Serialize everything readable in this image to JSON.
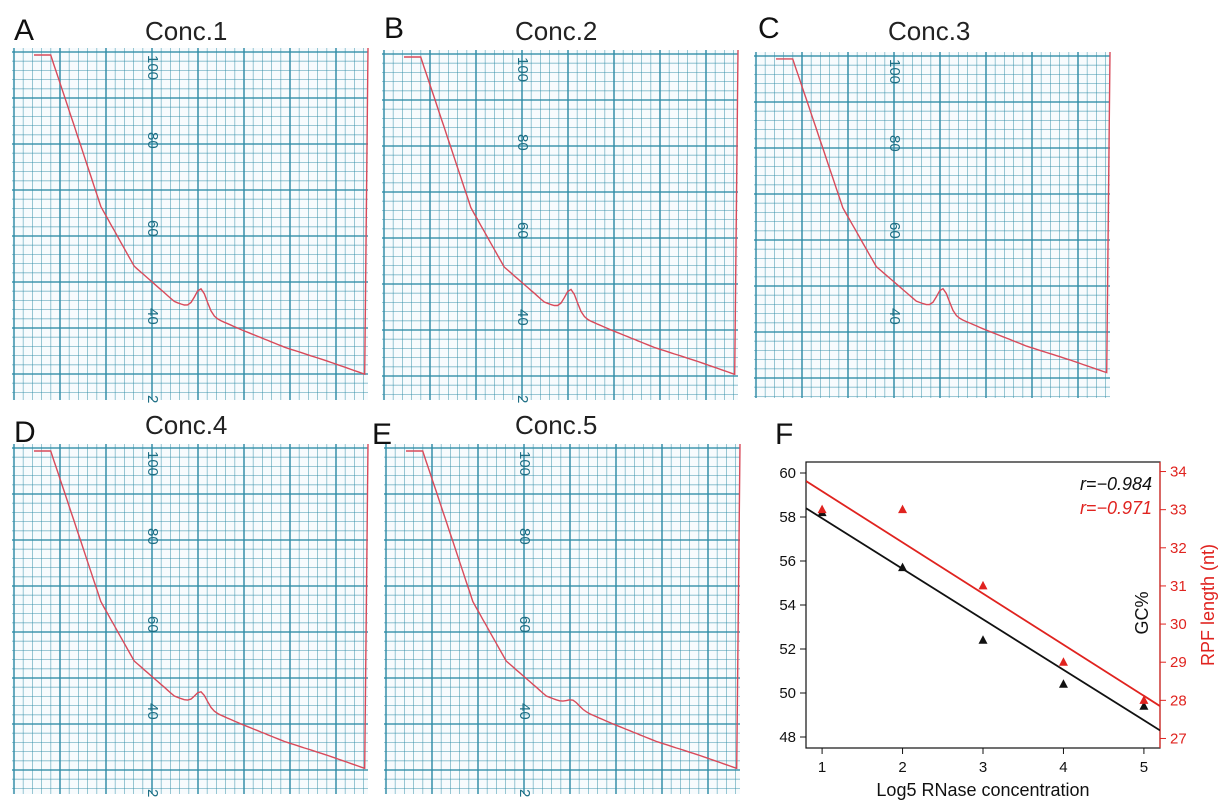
{
  "panels": [
    {
      "letter": "A",
      "title": "Conc.1",
      "tick_labels": [
        "100",
        "80",
        "60",
        "40",
        "2"
      ],
      "peak_height": 0.55
    },
    {
      "letter": "B",
      "title": "Conc.2",
      "tick_labels": [
        "100",
        "80",
        "60",
        "40",
        "2"
      ],
      "peak_height": 0.55
    },
    {
      "letter": "C",
      "title": "Conc.3",
      "tick_labels": [
        "100",
        "80",
        "60",
        "40"
      ],
      "peak_height": 0.55
    },
    {
      "letter": "D",
      "title": "Conc.4",
      "tick_labels": [
        "100",
        "80",
        "60",
        "40",
        "2"
      ],
      "peak_height": 0.35
    },
    {
      "letter": "E",
      "title": "Conc.5",
      "tick_labels": [
        "100",
        "80",
        "60",
        "40",
        "2"
      ],
      "peak_height": 0.15
    }
  ],
  "panel_f": {
    "letter": "F"
  },
  "colors": {
    "grid": "#2f8ca6",
    "trace": "#d94a5a",
    "fit_black": "#111111",
    "fit_red": "#e0231f"
  },
  "chart_data": {
    "type": "scatter",
    "xlabel": "Log5 RNase concentration",
    "ylabel": "GC%",
    "y2label": "RPF length (nt)",
    "xlim": [
      0.8,
      5.2
    ],
    "ylim": [
      47.5,
      60.5
    ],
    "y2lim": [
      26.75,
      34.25
    ],
    "x_ticks": [
      1,
      2,
      3,
      4,
      5
    ],
    "y_ticks": [
      48,
      50,
      52,
      54,
      56,
      58,
      60
    ],
    "y2_ticks": [
      27,
      28,
      29,
      30,
      31,
      32,
      33,
      34
    ],
    "series": [
      {
        "axis": "left",
        "color": "#111111",
        "x": [
          1,
          2,
          3,
          4,
          5
        ],
        "y": [
          58.2,
          55.7,
          52.4,
          50.4,
          49.4
        ],
        "fit": {
          "x": [
            0.8,
            5.2
          ],
          "y": [
            58.4,
            48.3
          ]
        },
        "annotation": "r=−0.984"
      },
      {
        "axis": "right",
        "color": "#e0231f",
        "x": [
          1,
          2,
          3,
          4,
          5
        ],
        "y": [
          33.0,
          33.0,
          31.0,
          29.0,
          28.0
        ],
        "fit": {
          "x": [
            0.8,
            5.2
          ],
          "y": [
            33.75,
            27.85
          ]
        },
        "annotation": "r=−0.971"
      }
    ]
  }
}
